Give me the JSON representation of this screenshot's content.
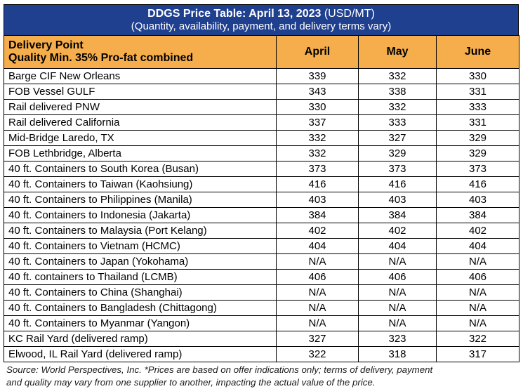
{
  "header": {
    "title_bold": "DDGS Price Table: April 13, 2023",
    "title_unit": "(USD/MT)",
    "subtitle": "(Quantity, availability, payment, and delivery terms vary)"
  },
  "columns": {
    "delivery_point": "Delivery Point",
    "quality": "Quality Min. 35% Pro-fat combined",
    "months": [
      "April",
      "May",
      "June"
    ]
  },
  "rows": [
    {
      "location": "Barge CIF New Orleans",
      "values": [
        "339",
        "332",
        "330"
      ]
    },
    {
      "location": "FOB Vessel GULF",
      "values": [
        "343",
        "338",
        "331"
      ]
    },
    {
      "location": "Rail delivered PNW",
      "values": [
        "330",
        "332",
        "333"
      ]
    },
    {
      "location": "Rail delivered California",
      "values": [
        "337",
        "333",
        "331"
      ]
    },
    {
      "location": "Mid-Bridge Laredo, TX",
      "values": [
        "332",
        "327",
        "329"
      ]
    },
    {
      "location": "FOB Lethbridge, Alberta",
      "values": [
        "332",
        "329",
        "329"
      ]
    },
    {
      "location": "40 ft. Containers to South Korea (Busan)",
      "values": [
        "373",
        "373",
        "373"
      ]
    },
    {
      "location": "40 ft. Containers to Taiwan (Kaohsiung)",
      "values": [
        "416",
        "416",
        "416"
      ]
    },
    {
      "location": "40 ft. Containers to Philippines (Manila)",
      "values": [
        "403",
        "403",
        "403"
      ]
    },
    {
      "location": "40 ft. Containers to Indonesia (Jakarta)",
      "values": [
        "384",
        "384",
        "384"
      ]
    },
    {
      "location": "40 ft. Containers to Malaysia (Port Kelang)",
      "values": [
        "402",
        "402",
        "402"
      ]
    },
    {
      "location": "40 ft. Containers to Vietnam (HCMC)",
      "values": [
        "404",
        "404",
        "404"
      ]
    },
    {
      "location": "40 ft. Containers to Japan (Yokohama)",
      "values": [
        "N/A",
        "N/A",
        "N/A"
      ]
    },
    {
      "location": "40 ft. containers to Thailand (LCMB)",
      "values": [
        "406",
        "406",
        "406"
      ]
    },
    {
      "location": "40 ft. Containers to China (Shanghai)",
      "values": [
        "N/A",
        "N/A",
        "N/A"
      ]
    },
    {
      "location": "40 ft. Containers to Bangladesh (Chittagong)",
      "values": [
        "N/A",
        "N/A",
        "N/A"
      ]
    },
    {
      "location": "40 ft. Containers to Myanmar (Yangon)",
      "values": [
        "N/A",
        "N/A",
        "N/A"
      ]
    },
    {
      "location": "KC Rail Yard (delivered ramp)",
      "values": [
        "327",
        "323",
        "322"
      ]
    },
    {
      "location": "Elwood, IL Rail Yard (delivered ramp)",
      "values": [
        "322",
        "318",
        "317"
      ]
    }
  ],
  "footer": {
    "source_line1": "Source: World Perspectives, Inc. *Prices are based on offer indications only; terms of delivery, payment",
    "source_line2": "and quality may vary from one supplier to another, impacting the actual value of the price."
  },
  "colors": {
    "title_bg": "#1f3f8f",
    "header_bg": "#f5ae4b"
  }
}
